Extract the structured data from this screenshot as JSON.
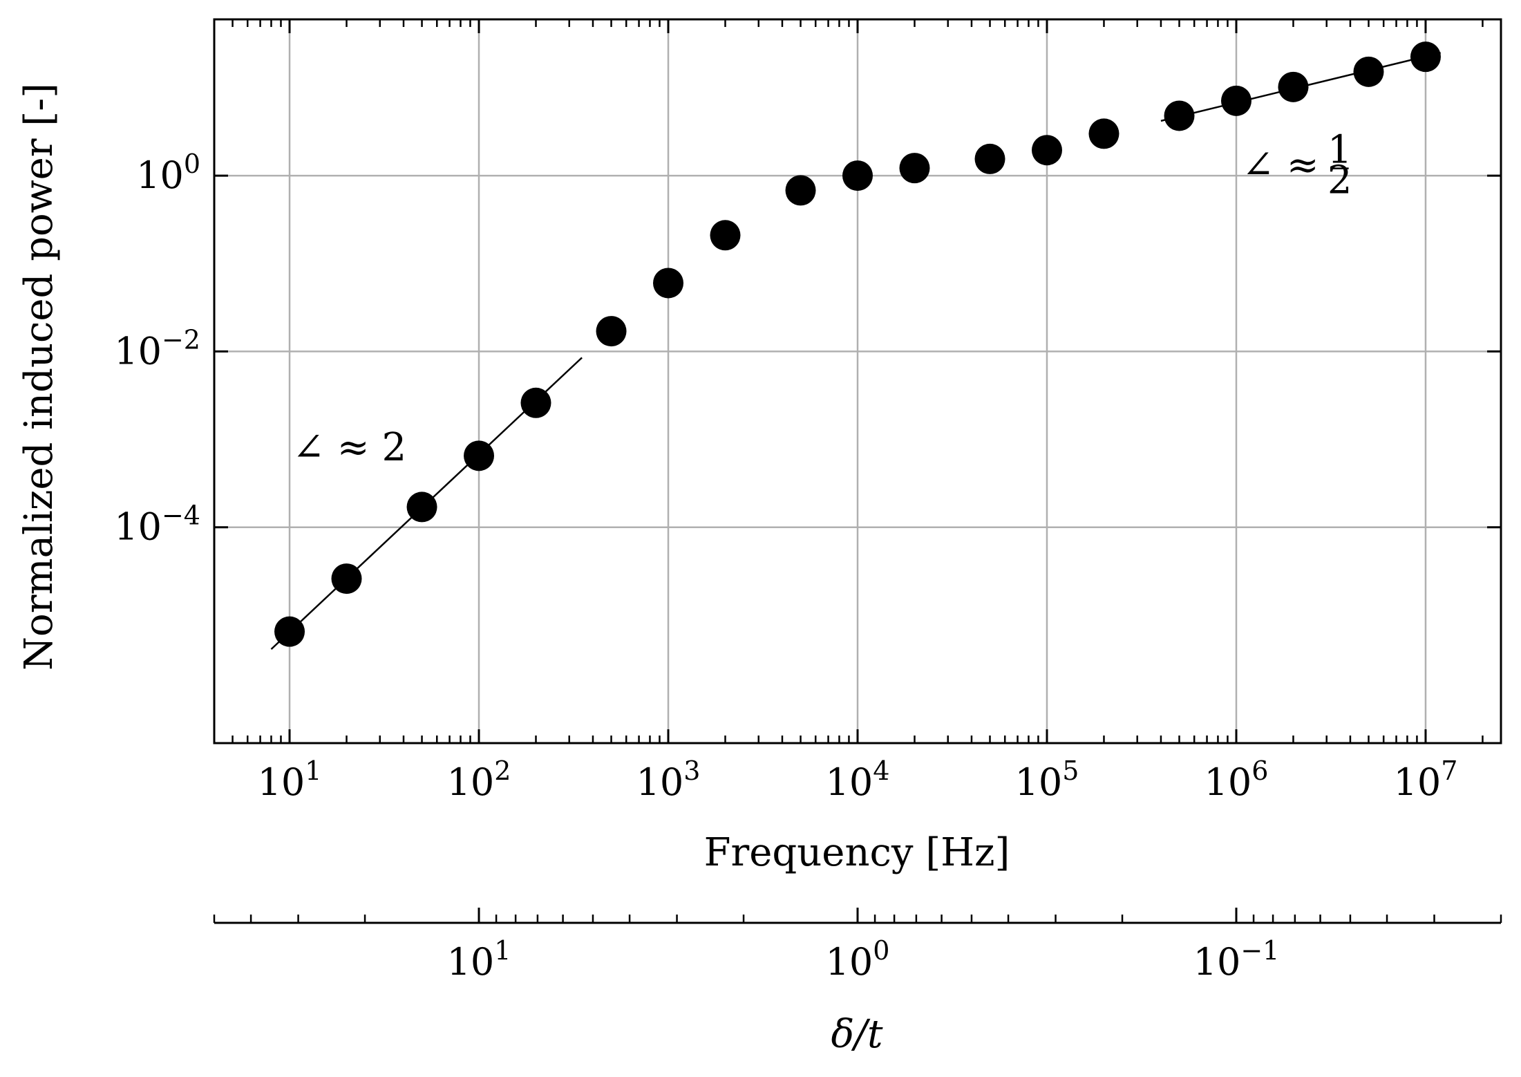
{
  "chart_data": {
    "type": "scatter",
    "xlabel": "Frequency [Hz]",
    "ylabel": "Normalized induced power [-]",
    "x_scale": "log",
    "y_scale": "log",
    "xlim": [
      4,
      25000000
    ],
    "ylim": [
      3.5e-07,
      60
    ],
    "grid": true,
    "x_ticks": [
      {
        "value": 10,
        "base": "10",
        "exp": "1"
      },
      {
        "value": 100,
        "base": "10",
        "exp": "2"
      },
      {
        "value": 1000,
        "base": "10",
        "exp": "3"
      },
      {
        "value": 10000,
        "base": "10",
        "exp": "4"
      },
      {
        "value": 100000,
        "base": "10",
        "exp": "5"
      },
      {
        "value": 1000000,
        "base": "10",
        "exp": "6"
      },
      {
        "value": 10000000,
        "base": "10",
        "exp": "7"
      }
    ],
    "y_ticks": [
      {
        "value": 1,
        "base": "10",
        "exp": "0"
      },
      {
        "value": 0.01,
        "base": "10",
        "exp": "−2"
      },
      {
        "value": 0.0001,
        "base": "10",
        "exp": "−4"
      }
    ],
    "series": [
      {
        "marker": "circle",
        "color": "#000000",
        "points": [
          {
            "x": 10,
            "y": 6.5e-06
          },
          {
            "x": 20,
            "y": 2.6e-05
          },
          {
            "x": 50,
            "y": 0.00017
          },
          {
            "x": 100,
            "y": 0.00065
          },
          {
            "x": 200,
            "y": 0.0026
          },
          {
            "x": 500,
            "y": 0.017
          },
          {
            "x": 1000,
            "y": 0.06
          },
          {
            "x": 2000,
            "y": 0.21
          },
          {
            "x": 5000,
            "y": 0.68
          },
          {
            "x": 10000,
            "y": 1.0
          },
          {
            "x": 20000,
            "y": 1.22
          },
          {
            "x": 50000,
            "y": 1.55
          },
          {
            "x": 100000,
            "y": 1.95
          },
          {
            "x": 200000,
            "y": 3.0
          },
          {
            "x": 500000,
            "y": 4.8
          },
          {
            "x": 1000000,
            "y": 7.1
          },
          {
            "x": 2000000,
            "y": 10.2
          },
          {
            "x": 5000000,
            "y": 15.2
          },
          {
            "x": 10000000,
            "y": 22.5
          }
        ]
      }
    ],
    "fit_lines": [
      {
        "x": [
          8,
          350
        ],
        "y": [
          4.1e-06,
          0.0085
        ],
        "slope_label": "∠ ≈ 2",
        "label_pos": {
          "x": 10,
          "y": 0.0008
        }
      },
      {
        "x": [
          400000,
          12000000
        ],
        "y": [
          4.2,
          25.0
        ],
        "slope_label_prefix": "∠ ≈",
        "frac_num": "1",
        "frac_den": "2",
        "label_pos": {
          "x": 1000000,
          "y": 1.3
        }
      }
    ],
    "secondary_x_axis": {
      "label": "δ/t",
      "scale": "log",
      "ticks": [
        {
          "value": 10,
          "base": "10",
          "exp": "1"
        },
        {
          "value": 1,
          "base": "10",
          "exp": "0"
        },
        {
          "value": 0.1,
          "base": "10",
          "exp": "−1"
        }
      ],
      "ticks_at_frequency_hz": [
        100,
        10000,
        1000000
      ]
    }
  }
}
